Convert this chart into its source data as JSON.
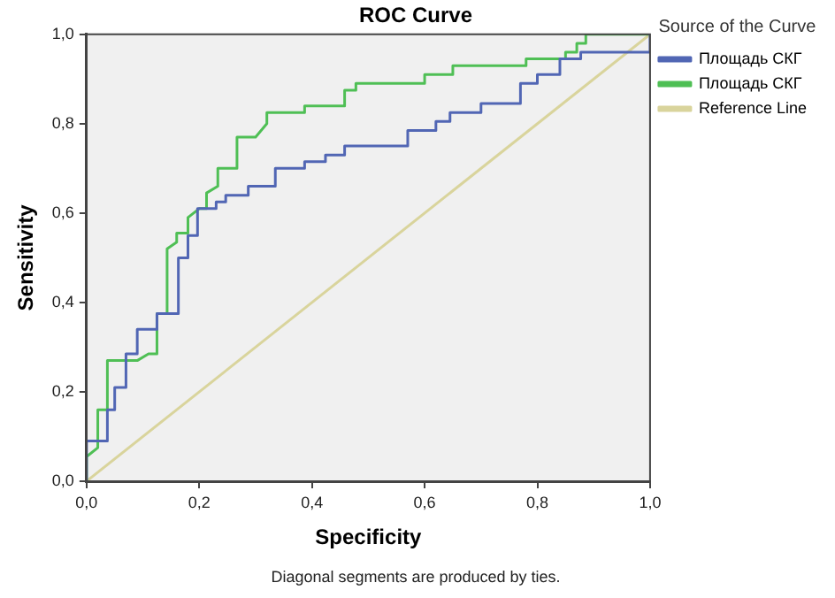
{
  "chart_data": {
    "type": "line",
    "title": "ROC Curve",
    "xlabel": "Specificity",
    "ylabel": "Sensitivity",
    "legend_title": "Source of the Curve",
    "annotations": [
      "Diagonal segments are produced by ties."
    ],
    "xlim": [
      0,
      1
    ],
    "ylim": [
      0,
      1
    ],
    "xticks": [
      {
        "value": 0,
        "label": "0,0"
      },
      {
        "value": 0.2,
        "label": "0,2"
      },
      {
        "value": 0.4,
        "label": "0,4"
      },
      {
        "value": 0.6,
        "label": "0,6"
      },
      {
        "value": 0.8,
        "label": "0,8"
      },
      {
        "value": 1,
        "label": "1,0"
      }
    ],
    "yticks": [
      {
        "value": 0,
        "label": "0,0"
      },
      {
        "value": 0.2,
        "label": "0,2"
      },
      {
        "value": 0.4,
        "label": "0,4"
      },
      {
        "value": 0.6,
        "label": "0,6"
      },
      {
        "value": 0.8,
        "label": "0,8"
      },
      {
        "value": 1,
        "label": "1,0"
      }
    ],
    "grid": false,
    "legend": "right",
    "marker": "none",
    "line_style": "solid",
    "series": [
      {
        "name": "Площадь СКГ",
        "color": "#5166b4",
        "x": [
          0,
          0,
          0.037,
          0.037,
          0.05,
          0.05,
          0.07,
          0.07,
          0.09,
          0.09,
          0.125,
          0.125,
          0.163,
          0.163,
          0.18,
          0.18,
          0.197,
          0.197,
          0.23,
          0.23,
          0.247,
          0.247,
          0.287,
          0.287,
          0.335,
          0.335,
          0.387,
          0.387,
          0.424,
          0.424,
          0.458,
          0.458,
          0.57,
          0.57,
          0.62,
          0.62,
          0.645,
          0.645,
          0.7,
          0.7,
          0.77,
          0.77,
          0.8,
          0.8,
          0.84,
          0.84,
          0.877,
          0.877,
          1,
          1
        ],
        "values": [
          0,
          0.09,
          0.09,
          0.16,
          0.16,
          0.21,
          0.21,
          0.285,
          0.285,
          0.34,
          0.34,
          0.375,
          0.375,
          0.5,
          0.5,
          0.55,
          0.55,
          0.61,
          0.61,
          0.625,
          0.625,
          0.64,
          0.64,
          0.66,
          0.66,
          0.7,
          0.7,
          0.715,
          0.715,
          0.73,
          0.73,
          0.75,
          0.75,
          0.785,
          0.785,
          0.805,
          0.805,
          0.825,
          0.825,
          0.845,
          0.845,
          0.89,
          0.89,
          0.91,
          0.91,
          0.945,
          0.945,
          0.96,
          0.96,
          1
        ]
      },
      {
        "name": "Площадь СКГ",
        "color": "#4fbf55",
        "x": [
          0,
          0,
          0.02,
          0.02,
          0.037,
          0.037,
          0.09,
          0.11,
          0.125,
          0.125,
          0.143,
          0.143,
          0.16,
          0.16,
          0.18,
          0.18,
          0.2,
          0.213,
          0.213,
          0.233,
          0.233,
          0.267,
          0.267,
          0.3,
          0.32,
          0.32,
          0.387,
          0.387,
          0.458,
          0.458,
          0.478,
          0.478,
          0.6,
          0.6,
          0.65,
          0.65,
          0.78,
          0.78,
          0.85,
          0.85,
          0.87,
          0.87,
          0.886,
          0.886,
          1
        ],
        "values": [
          0,
          0.055,
          0.075,
          0.16,
          0.16,
          0.27,
          0.27,
          0.285,
          0.285,
          0.375,
          0.375,
          0.52,
          0.535,
          0.555,
          0.555,
          0.59,
          0.61,
          0.61,
          0.645,
          0.66,
          0.7,
          0.7,
          0.77,
          0.77,
          0.8,
          0.825,
          0.825,
          0.84,
          0.84,
          0.875,
          0.875,
          0.89,
          0.89,
          0.91,
          0.91,
          0.93,
          0.93,
          0.945,
          0.945,
          0.96,
          0.96,
          0.98,
          0.98,
          1,
          1
        ]
      },
      {
        "name": "Reference Line",
        "color": "#d9d49c",
        "x": [
          0,
          1
        ],
        "values": [
          0,
          1
        ]
      }
    ]
  }
}
